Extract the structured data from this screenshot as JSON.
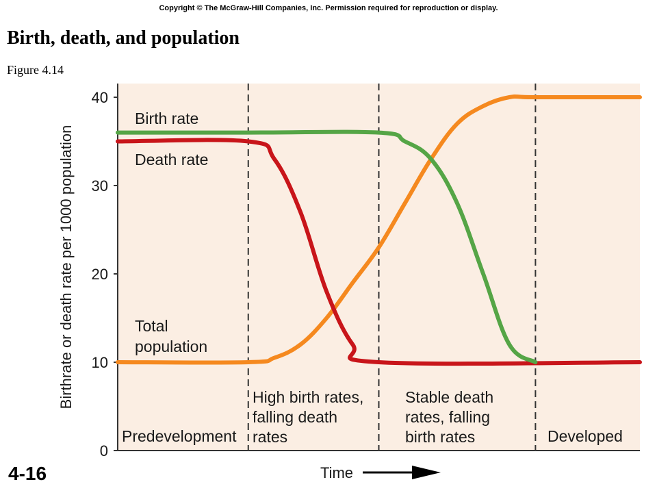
{
  "header": {
    "copyright": "Copyright © The McGraw-Hill Companies, Inc. Permission required for reproduction or display.",
    "title": "Birth, death, and population",
    "subtitle": "Figure 4.14"
  },
  "footer": {
    "slide_number": "4-16"
  },
  "chart_data": {
    "type": "line",
    "xlabel": "Time",
    "ylabel": "Birthrate or death rate per 1000 population",
    "ylim": [
      0,
      40
    ],
    "yticks": [
      0,
      10,
      20,
      30,
      40
    ],
    "xlim": [
      0,
      100
    ],
    "grid": false,
    "background_color": "#fbeee3",
    "phases": [
      {
        "label": [
          "Predevelopment"
        ],
        "start": 0,
        "end": 25
      },
      {
        "label": [
          "High birth rates,",
          "falling death",
          "rates"
        ],
        "start": 25,
        "end": 50
      },
      {
        "label": [
          "Stable death",
          "rates, falling",
          "birth rates"
        ],
        "start": 50,
        "end": 80
      },
      {
        "label": [
          "Developed"
        ],
        "start": 80,
        "end": 100
      }
    ],
    "series": [
      {
        "name": "Birth rate",
        "label_lines": [
          "Birth rate"
        ],
        "color": "#55a546",
        "x": [
          0,
          25,
          50,
          55,
          60,
          65,
          70,
          75,
          80
        ],
        "y": [
          36,
          36,
          36,
          35,
          33,
          28,
          20,
          12,
          10
        ]
      },
      {
        "name": "Death rate",
        "label_lines": [
          "Death rate"
        ],
        "color": "#c8151a",
        "x": [
          0,
          25,
          30,
          35,
          40,
          45,
          50,
          100
        ],
        "y": [
          35,
          35,
          33,
          27,
          18,
          12,
          10,
          10
        ]
      },
      {
        "name": "Total population",
        "label_lines": [
          "Total",
          "population"
        ],
        "color": "#f5891f",
        "x": [
          0,
          25,
          30,
          35,
          40,
          45,
          50,
          55,
          60,
          65,
          70,
          75,
          80,
          100
        ],
        "y": [
          10,
          10,
          10.5,
          12,
          15,
          19,
          23,
          28,
          33,
          37,
          39,
          40,
          40,
          40
        ]
      }
    ],
    "arrow_color": "#000000"
  }
}
